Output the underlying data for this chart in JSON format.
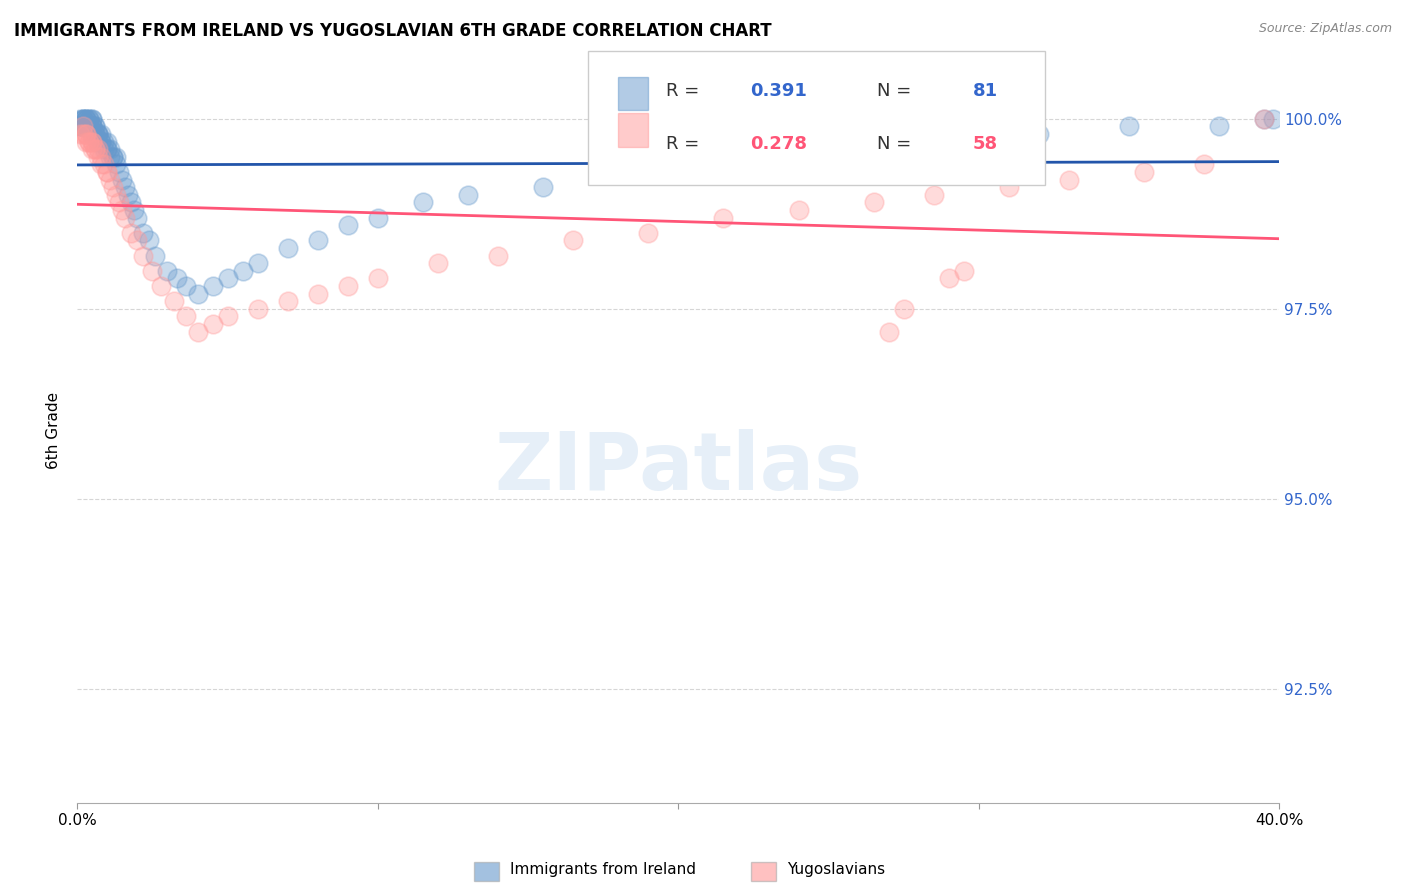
{
  "title": "IMMIGRANTS FROM IRELAND VS YUGOSLAVIAN 6TH GRADE CORRELATION CHART",
  "source": "Source: ZipAtlas.com",
  "ylabel": "6th Grade",
  "ylabel_right_ticks": [
    "100.0%",
    "97.5%",
    "95.0%",
    "92.5%"
  ],
  "ylabel_right_vals": [
    1.0,
    0.975,
    0.95,
    0.925
  ],
  "legend": {
    "ireland_R": 0.391,
    "ireland_N": 81,
    "yugoslav_R": 0.278,
    "yugoslav_N": 58
  },
  "ireland_color": "#6699CC",
  "yugoslav_color": "#FF9999",
  "trendline_ireland_color": "#2255AA",
  "trendline_yugoslav_color": "#FF5577",
  "background_color": "#FFFFFF",
  "grid_color": "#CCCCCC",
  "xlim": [
    0.0,
    0.4
  ],
  "ylim": [
    0.91,
    1.008
  ],
  "ireland_x": [
    0.001,
    0.001,
    0.001,
    0.002,
    0.002,
    0.002,
    0.002,
    0.002,
    0.003,
    0.003,
    0.003,
    0.003,
    0.003,
    0.003,
    0.004,
    0.004,
    0.004,
    0.004,
    0.004,
    0.005,
    0.005,
    0.005,
    0.005,
    0.005,
    0.005,
    0.006,
    0.006,
    0.006,
    0.006,
    0.007,
    0.007,
    0.007,
    0.007,
    0.008,
    0.008,
    0.008,
    0.009,
    0.009,
    0.01,
    0.01,
    0.01,
    0.011,
    0.011,
    0.012,
    0.012,
    0.013,
    0.013,
    0.014,
    0.015,
    0.016,
    0.017,
    0.018,
    0.019,
    0.02,
    0.022,
    0.024,
    0.026,
    0.03,
    0.033,
    0.036,
    0.04,
    0.045,
    0.05,
    0.055,
    0.06,
    0.07,
    0.08,
    0.09,
    0.1,
    0.115,
    0.13,
    0.155,
    0.18,
    0.21,
    0.25,
    0.29,
    0.32,
    0.35,
    0.38,
    0.395,
    0.398
  ],
  "ireland_y": [
    0.999,
    0.999,
    1.0,
    0.999,
    0.999,
    1.0,
    1.0,
    1.0,
    0.999,
    0.999,
    0.999,
    1.0,
    1.0,
    1.0,
    0.999,
    0.999,
    0.999,
    1.0,
    1.0,
    0.998,
    0.999,
    0.999,
    0.999,
    1.0,
    1.0,
    0.998,
    0.998,
    0.999,
    0.999,
    0.997,
    0.998,
    0.998,
    0.998,
    0.997,
    0.997,
    0.998,
    0.996,
    0.997,
    0.996,
    0.996,
    0.997,
    0.995,
    0.996,
    0.995,
    0.995,
    0.994,
    0.995,
    0.993,
    0.992,
    0.991,
    0.99,
    0.989,
    0.988,
    0.987,
    0.985,
    0.984,
    0.982,
    0.98,
    0.979,
    0.978,
    0.977,
    0.978,
    0.979,
    0.98,
    0.981,
    0.983,
    0.984,
    0.986,
    0.987,
    0.989,
    0.99,
    0.991,
    0.993,
    0.994,
    0.996,
    0.997,
    0.998,
    0.999,
    0.999,
    1.0,
    1.0
  ],
  "yugoslav_x": [
    0.001,
    0.002,
    0.002,
    0.003,
    0.003,
    0.003,
    0.004,
    0.004,
    0.005,
    0.005,
    0.005,
    0.006,
    0.006,
    0.007,
    0.007,
    0.008,
    0.008,
    0.009,
    0.01,
    0.01,
    0.011,
    0.012,
    0.013,
    0.014,
    0.015,
    0.016,
    0.018,
    0.02,
    0.022,
    0.025,
    0.028,
    0.032,
    0.036,
    0.04,
    0.045,
    0.05,
    0.06,
    0.07,
    0.08,
    0.09,
    0.1,
    0.12,
    0.14,
    0.165,
    0.19,
    0.215,
    0.24,
    0.265,
    0.285,
    0.31,
    0.33,
    0.355,
    0.375,
    0.395,
    0.29,
    0.295,
    0.27,
    0.275
  ],
  "yugoslav_y": [
    0.998,
    0.998,
    0.999,
    0.997,
    0.998,
    0.998,
    0.997,
    0.997,
    0.996,
    0.997,
    0.997,
    0.996,
    0.996,
    0.995,
    0.996,
    0.994,
    0.995,
    0.994,
    0.993,
    0.993,
    0.992,
    0.991,
    0.99,
    0.989,
    0.988,
    0.987,
    0.985,
    0.984,
    0.982,
    0.98,
    0.978,
    0.976,
    0.974,
    0.972,
    0.973,
    0.974,
    0.975,
    0.976,
    0.977,
    0.978,
    0.979,
    0.981,
    0.982,
    0.984,
    0.985,
    0.987,
    0.988,
    0.989,
    0.99,
    0.991,
    0.992,
    0.993,
    0.994,
    1.0,
    0.979,
    0.98,
    0.972,
    0.975
  ]
}
